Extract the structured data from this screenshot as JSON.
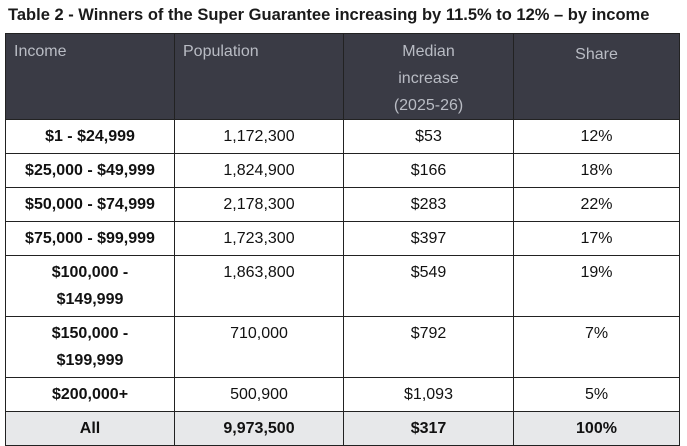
{
  "title": "Table 2 - Winners of the Super Guarantee increasing by 11.5% to 12% – by income",
  "headers": {
    "income": "Income",
    "population": "Population",
    "median_line1": "Median",
    "median_line2": "increase",
    "median_line3": "(2025-26)",
    "share": "Share"
  },
  "rows": [
    {
      "income": "$1 - $24,999",
      "population": "1,172,300",
      "median": "$53",
      "share": "12%"
    },
    {
      "income": "$25,000 - $49,999",
      "population": "1,824,900",
      "median": "$166",
      "share": "18%"
    },
    {
      "income": "$50,000 - $74,999",
      "population": "2,178,300",
      "median": "$283",
      "share": "22%"
    },
    {
      "income": "$75,000 - $99,999",
      "population": "1,723,300",
      "median": "$397",
      "share": "17%"
    },
    {
      "income_line1": "$100,000 -",
      "income_line2": "$149,999",
      "population": "1,863,800",
      "median": "$549",
      "share": "19%"
    },
    {
      "income_line1": "$150,000 -",
      "income_line2": "$199,999",
      "population": "710,000",
      "median": "$792",
      "share": "7%"
    },
    {
      "income": "$200,000+",
      "population": "500,900",
      "median": "$1,093",
      "share": "5%"
    }
  ],
  "total": {
    "income": "All",
    "population": "9,973,500",
    "median": "$317",
    "share": "100%"
  }
}
